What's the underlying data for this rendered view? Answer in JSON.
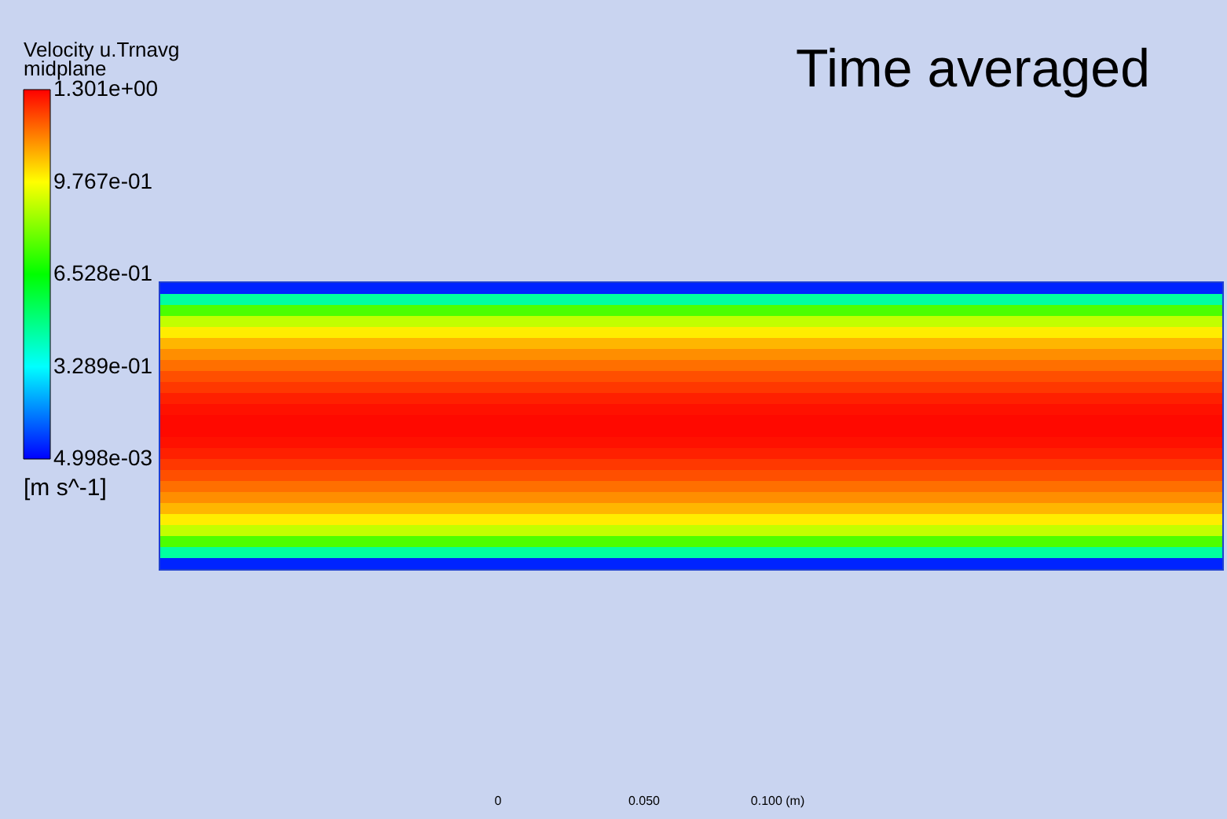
{
  "chart_data": {
    "type": "heatmap",
    "title": "Time averaged",
    "clabel": "Velocity u.Trnavg\nmidplane",
    "categories": [
      null
    ],
    "y_categories": [
      null,
      null,
      null,
      null,
      null,
      null,
      null,
      null,
      null,
      null,
      null,
      null,
      null,
      null,
      null,
      null,
      null,
      null,
      null,
      null,
      null,
      null,
      null,
      null,
      null,
      null
    ],
    "cells": [
      [
        0.05
      ],
      [
        0.45
      ],
      [
        0.75
      ],
      [
        0.9
      ],
      [
        1.0
      ],
      [
        1.07
      ],
      [
        1.12
      ],
      [
        1.16
      ],
      [
        1.2
      ],
      [
        1.23
      ],
      [
        1.26
      ],
      [
        1.28
      ],
      [
        1.29
      ],
      [
        1.29
      ],
      [
        1.28
      ],
      [
        1.26
      ],
      [
        1.23
      ],
      [
        1.2
      ],
      [
        1.16
      ],
      [
        1.12
      ],
      [
        1.07
      ],
      [
        1.0
      ],
      [
        0.9
      ],
      [
        0.75
      ],
      [
        0.45
      ],
      [
        0.05
      ]
    ],
    "clim": [
      0.004998,
      1.301
    ],
    "cticks": [
      {
        "value": 1.301,
        "label": "1.301e+00"
      },
      {
        "value": 0.9767,
        "label": "9.767e-01"
      },
      {
        "value": 0.6528,
        "label": "6.528e-01"
      },
      {
        "value": 0.3289,
        "label": "3.289e-01"
      },
      {
        "value": 0.004998,
        "label": "4.998e-03"
      }
    ],
    "tick_labels": false,
    "annotations": [
      "[m s^-1]",
      "0",
      "0.050",
      "0.100 (m)"
    ]
  }
}
